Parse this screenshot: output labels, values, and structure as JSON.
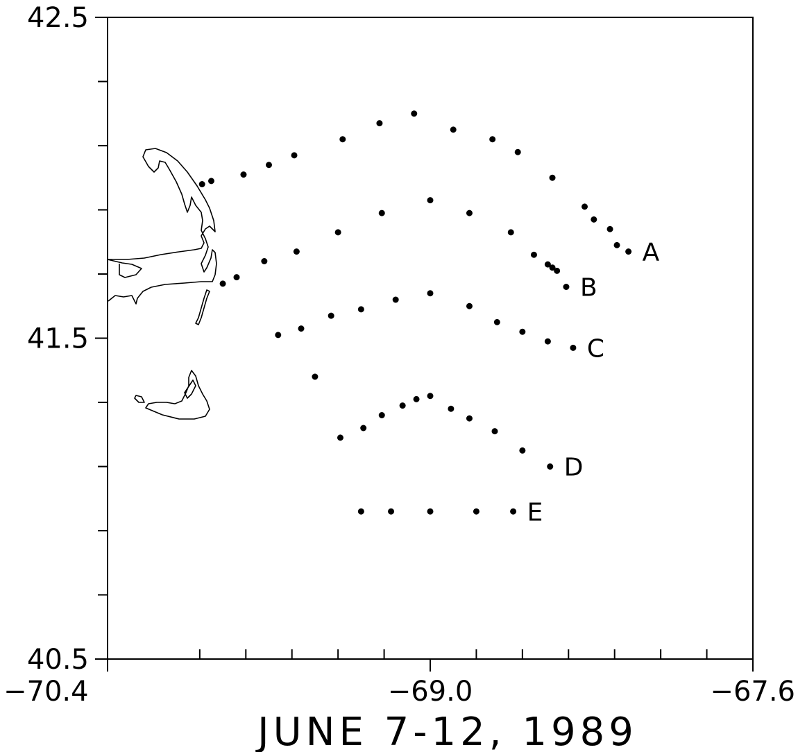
{
  "map": {
    "caption": "JUNE 7-12, 1989",
    "x_range": [
      -70.4,
      -67.6
    ],
    "y_range": [
      40.5,
      42.5
    ],
    "x_tick_labels": [
      {
        "value": -70.4,
        "label": "−70.4"
      },
      {
        "value": -69.0,
        "label": "−69.0"
      },
      {
        "value": -67.6,
        "label": "−67.6"
      }
    ],
    "x_minor_ticks": [
      -70.0,
      -69.8,
      -69.6,
      -69.4,
      -69.2,
      -68.8,
      -68.6,
      -68.4,
      -68.2,
      -68.0,
      -67.8
    ],
    "y_tick_labels": [
      {
        "value": 42.5,
        "label": "42.5"
      },
      {
        "value": 41.5,
        "label": "41.5"
      },
      {
        "value": 40.5,
        "label": "40.5"
      }
    ],
    "y_minor_ticks": [
      42.3,
      42.1,
      41.9,
      41.7,
      41.3,
      41.1,
      40.9,
      40.7
    ],
    "coastline_color": "#000000",
    "station_color": "#000000"
  },
  "chart_data": {
    "type": "scatter",
    "xlabel": "",
    "ylabel": "",
    "xlim": [
      -70.4,
      -67.6
    ],
    "ylim": [
      40.5,
      42.5
    ],
    "grid": false,
    "series": [
      {
        "name": "A",
        "label": "A",
        "points": [
          [
            -69.99,
            41.98
          ],
          [
            -69.95,
            41.99
          ],
          [
            -69.81,
            42.01
          ],
          [
            -69.7,
            42.04
          ],
          [
            -69.59,
            42.07
          ],
          [
            -69.38,
            42.12
          ],
          [
            -69.22,
            42.17
          ],
          [
            -69.07,
            42.2
          ],
          [
            -68.9,
            42.15
          ],
          [
            -68.73,
            42.12
          ],
          [
            -68.62,
            42.08
          ],
          [
            -68.47,
            42.0
          ],
          [
            -68.33,
            41.91
          ],
          [
            -68.29,
            41.87
          ],
          [
            -68.22,
            41.84
          ],
          [
            -68.19,
            41.79
          ],
          [
            -68.14,
            41.77
          ]
        ]
      },
      {
        "name": "B",
        "label": "B",
        "points": [
          [
            -69.9,
            41.67
          ],
          [
            -69.84,
            41.69
          ],
          [
            -69.72,
            41.74
          ],
          [
            -69.58,
            41.77
          ],
          [
            -69.4,
            41.83
          ],
          [
            -69.21,
            41.89
          ],
          [
            -69.0,
            41.93
          ],
          [
            -68.83,
            41.89
          ],
          [
            -68.65,
            41.83
          ],
          [
            -68.55,
            41.76
          ],
          [
            -68.49,
            41.73
          ],
          [
            -68.47,
            41.72
          ],
          [
            -68.45,
            41.71
          ],
          [
            -68.41,
            41.66
          ]
        ]
      },
      {
        "name": "C",
        "label": "C",
        "points": [
          [
            -69.66,
            41.51
          ],
          [
            -69.56,
            41.53
          ],
          [
            -69.43,
            41.57
          ],
          [
            -69.3,
            41.59
          ],
          [
            -69.15,
            41.62
          ],
          [
            -69.0,
            41.64
          ],
          [
            -68.83,
            41.6
          ],
          [
            -68.71,
            41.55
          ],
          [
            -68.6,
            41.52
          ],
          [
            -68.49,
            41.49
          ],
          [
            -68.38,
            41.47
          ]
        ]
      },
      {
        "name": "D",
        "label": "D",
        "points": [
          [
            -69.5,
            41.38
          ],
          [
            -69.39,
            41.19
          ],
          [
            -69.29,
            41.22
          ],
          [
            -69.21,
            41.26
          ],
          [
            -69.12,
            41.29
          ],
          [
            -69.06,
            41.31
          ],
          [
            -69.0,
            41.32
          ],
          [
            -68.91,
            41.28
          ],
          [
            -68.83,
            41.25
          ],
          [
            -68.72,
            41.21
          ],
          [
            -68.6,
            41.15
          ],
          [
            -68.48,
            41.1
          ]
        ]
      },
      {
        "name": "E",
        "label": "E",
        "points": [
          [
            -69.3,
            40.96
          ],
          [
            -69.17,
            40.96
          ],
          [
            -69.0,
            40.96
          ],
          [
            -68.8,
            40.96
          ],
          [
            -68.64,
            40.96
          ]
        ]
      }
    ]
  }
}
